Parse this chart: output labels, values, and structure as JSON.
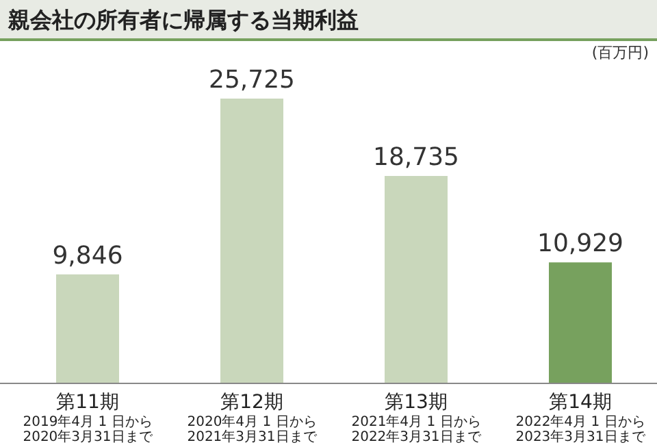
{
  "chart_data": {
    "type": "bar",
    "title": "親会社の所有者に帰属する当期利益",
    "ylabel": "(百万円)",
    "categories": [
      "第11期\n2019年4月 1 日から\n2020年3月31日まで",
      "第12期\n2020年4月 1 日から\n2021年3月31日まで",
      "第13期\n2021年4月 1 日から\n2022年3月31日まで",
      "第14期\n2022年4月 1 日から\n2023年3月31日まで"
    ],
    "values": [
      9846,
      25725,
      18735,
      10929
    ],
    "colors": [
      "#c9d7bb",
      "#c9d7bb",
      "#c9d7bb",
      "#77a15e"
    ],
    "value_labels": [
      "9,846",
      "25,725",
      "18,735",
      "10,929"
    ]
  }
}
